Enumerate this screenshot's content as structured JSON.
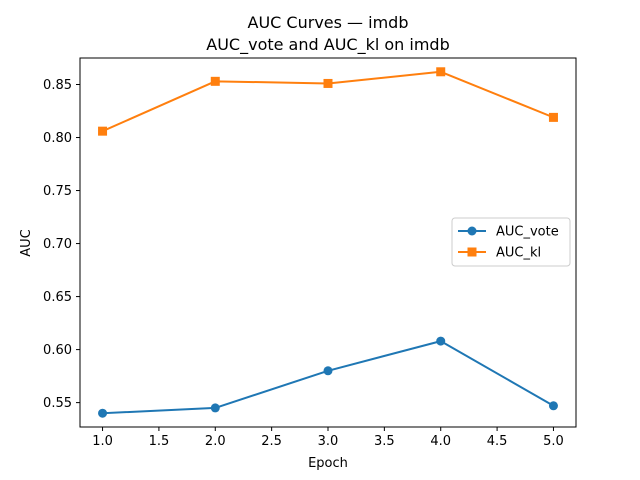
{
  "chart_data": {
    "type": "line",
    "title": "AUC Curves — imdb",
    "subtitle": "AUC_vote and AUC_kl on imdb",
    "xlabel": "Epoch",
    "ylabel": "AUC",
    "x": [
      1.0,
      2.0,
      3.0,
      4.0,
      5.0
    ],
    "xlim": [
      0.8,
      5.2
    ],
    "ylim": [
      0.527,
      0.875
    ],
    "xticks": [
      1.0,
      1.5,
      2.0,
      2.5,
      3.0,
      3.5,
      4.0,
      4.5,
      5.0
    ],
    "xtick_labels": [
      "1.0",
      "1.5",
      "2.0",
      "2.5",
      "3.0",
      "3.5",
      "4.0",
      "4.5",
      "5.0"
    ],
    "yticks": [
      0.55,
      0.6,
      0.65,
      0.7,
      0.75,
      0.8,
      0.85
    ],
    "ytick_labels": [
      "0.55",
      "0.60",
      "0.65",
      "0.70",
      "0.75",
      "0.80",
      "0.85"
    ],
    "grid": false,
    "legend_position": "center-right",
    "series": [
      {
        "name": "AUC_vote",
        "values": [
          0.54,
          0.545,
          0.58,
          0.608,
          0.547
        ],
        "color": "#1f77b4",
        "marker": "circle"
      },
      {
        "name": "AUC_kl",
        "values": [
          0.806,
          0.853,
          0.851,
          0.862,
          0.819
        ],
        "color": "#ff7f0e",
        "marker": "square"
      }
    ]
  }
}
